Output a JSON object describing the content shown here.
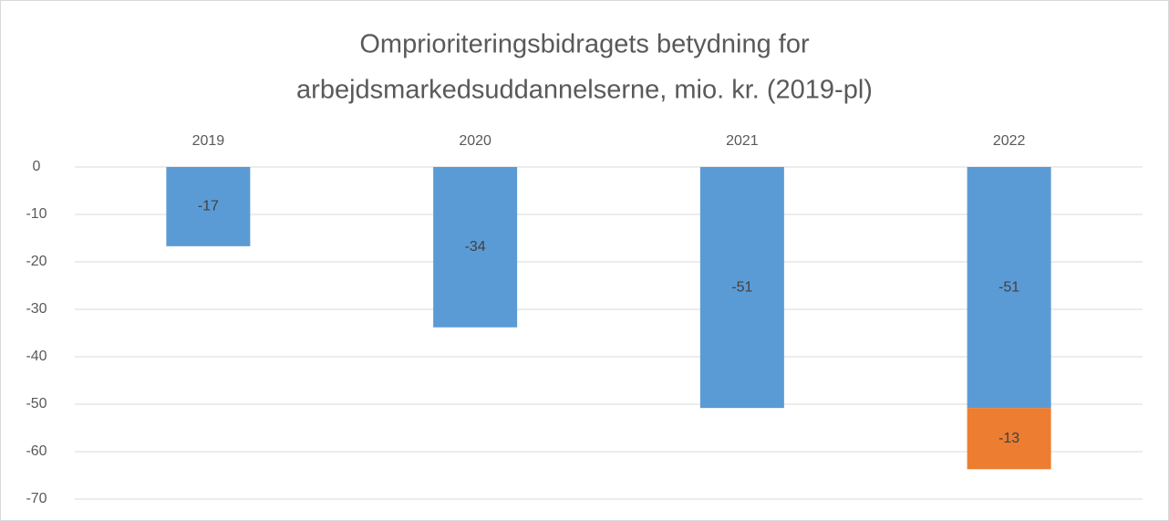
{
  "chart_data": {
    "type": "stacked_bar",
    "title": [
      "Omprioriteringsbidragets betydning for",
      "arbejdsmarkedsuddannelserne, mio. kr. (2019-pl)"
    ],
    "categories": [
      "2019",
      "2020",
      "2021",
      "2022"
    ],
    "series": [
      {
        "color": "#5b9bd5",
        "values": [
          -16.7,
          -33.8,
          -50.8,
          -50.8
        ],
        "value_labels": [
          "-17",
          "-34",
          "-51",
          "-51"
        ]
      },
      {
        "color": "#ed7d31",
        "values": [
          null,
          null,
          null,
          -12.9
        ],
        "value_labels": [
          null,
          null,
          null,
          "-13"
        ]
      }
    ],
    "ylim": [
      -70,
      0
    ],
    "yticks": [
      0,
      -10,
      -20,
      -30,
      -40,
      -50,
      -60,
      -70
    ],
    "grid": true
  }
}
